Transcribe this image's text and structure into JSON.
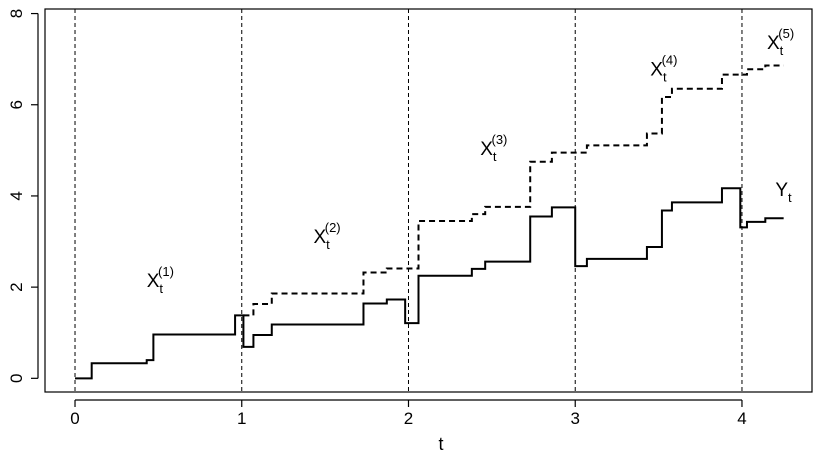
{
  "chart_data": {
    "type": "line",
    "title": "",
    "xlabel": "t",
    "ylabel": "",
    "xlim": [
      -0.18,
      4.42
    ],
    "ylim": [
      -0.3,
      8.1
    ],
    "xticks": [
      0,
      1,
      2,
      3,
      4
    ],
    "yticks": [
      0,
      2,
      4,
      6,
      8
    ],
    "vlines": [
      0,
      1,
      2,
      3,
      4
    ],
    "grid": false,
    "legend": "none",
    "series": [
      {
        "name": "Y_t",
        "style": "solid",
        "color": "#000000",
        "points": [
          [
            0,
            0
          ],
          [
            0.1,
            0
          ],
          [
            0.1,
            0.33
          ],
          [
            0.43,
            0.33
          ],
          [
            0.43,
            0.4
          ],
          [
            0.47,
            0.4
          ],
          [
            0.47,
            0.96
          ],
          [
            0.96,
            0.96
          ],
          [
            0.96,
            1.38
          ],
          [
            1.01,
            1.38
          ],
          [
            1.01,
            0.69
          ],
          [
            1.07,
            0.69
          ],
          [
            1.07,
            0.95
          ],
          [
            1.18,
            0.95
          ],
          [
            1.18,
            1.18
          ],
          [
            1.73,
            1.18
          ],
          [
            1.73,
            1.64
          ],
          [
            1.87,
            1.64
          ],
          [
            1.87,
            1.73
          ],
          [
            1.98,
            1.73
          ],
          [
            1.98,
            1.21
          ],
          [
            2.06,
            1.21
          ],
          [
            2.06,
            2.25
          ],
          [
            2.38,
            2.25
          ],
          [
            2.38,
            2.4
          ],
          [
            2.46,
            2.4
          ],
          [
            2.46,
            2.56
          ],
          [
            2.73,
            2.56
          ],
          [
            2.73,
            3.55
          ],
          [
            2.86,
            3.55
          ],
          [
            2.86,
            3.75
          ],
          [
            3.0,
            3.75
          ],
          [
            3.0,
            2.46
          ],
          [
            3.07,
            2.46
          ],
          [
            3.07,
            2.62
          ],
          [
            3.43,
            2.62
          ],
          [
            3.43,
            2.88
          ],
          [
            3.52,
            2.88
          ],
          [
            3.52,
            3.68
          ],
          [
            3.58,
            3.68
          ],
          [
            3.58,
            3.86
          ],
          [
            3.88,
            3.86
          ],
          [
            3.88,
            4.17
          ],
          [
            3.99,
            4.17
          ],
          [
            3.99,
            3.31
          ],
          [
            4.03,
            3.31
          ],
          [
            4.03,
            3.43
          ],
          [
            4.14,
            3.43
          ],
          [
            4.14,
            3.51
          ],
          [
            4.25,
            3.51
          ]
        ]
      },
      {
        "name": "",
        "style": "dashed",
        "color": "#000000",
        "points": [
          [
            1.01,
            1.38
          ],
          [
            1.07,
            1.38
          ],
          [
            1.07,
            1.63
          ],
          [
            1.18,
            1.63
          ],
          [
            1.18,
            1.86
          ],
          [
            1.73,
            1.86
          ],
          [
            1.73,
            2.32
          ],
          [
            1.87,
            2.32
          ],
          [
            1.87,
            2.41
          ],
          [
            2.06,
            2.41
          ],
          [
            2.06,
            3.45
          ],
          [
            2.38,
            3.45
          ],
          [
            2.38,
            3.6
          ],
          [
            2.46,
            3.6
          ],
          [
            2.46,
            3.76
          ],
          [
            2.73,
            3.76
          ],
          [
            2.73,
            4.75
          ],
          [
            2.86,
            4.75
          ],
          [
            2.86,
            4.95
          ],
          [
            3.07,
            4.95
          ],
          [
            3.07,
            5.11
          ],
          [
            3.43,
            5.11
          ],
          [
            3.43,
            5.37
          ],
          [
            3.52,
            5.37
          ],
          [
            3.52,
            6.17
          ],
          [
            3.58,
            6.17
          ],
          [
            3.58,
            6.35
          ],
          [
            3.88,
            6.35
          ],
          [
            3.88,
            6.66
          ],
          [
            4.03,
            6.66
          ],
          [
            4.03,
            6.78
          ],
          [
            4.14,
            6.78
          ],
          [
            4.14,
            6.86
          ],
          [
            4.25,
            6.86
          ]
        ]
      }
    ],
    "annotations": [
      {
        "base": "X",
        "sub": "t",
        "sup": "(1)",
        "x": 0.43,
        "y": 2.0
      },
      {
        "base": "X",
        "sub": "t",
        "sup": "(2)",
        "x": 1.43,
        "y": 2.97
      },
      {
        "base": "X",
        "sub": "t",
        "sup": "(3)",
        "x": 2.43,
        "y": 4.9
      },
      {
        "base": "X",
        "sub": "t",
        "sup": "(4)",
        "x": 3.45,
        "y": 6.64
      },
      {
        "base": "X",
        "sub": "t",
        "sup": "(5)",
        "x": 4.15,
        "y": 7.22
      },
      {
        "base": "Y",
        "sub": "t",
        "sup": "",
        "x": 4.2,
        "y": 4.0
      }
    ]
  }
}
